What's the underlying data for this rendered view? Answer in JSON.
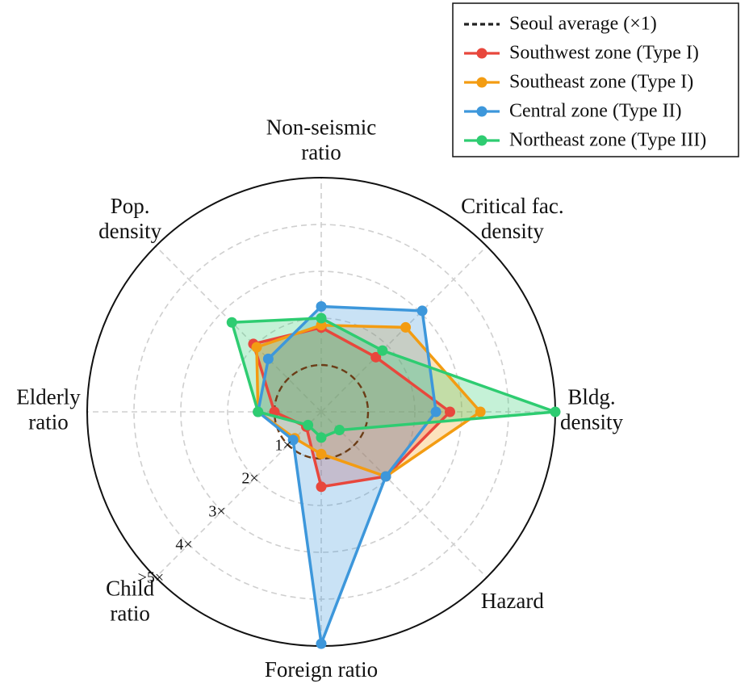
{
  "chart_data": {
    "type": "radar",
    "title": "",
    "axes": [
      "Non-seismic ratio",
      "Critical fac. density",
      "Bldg. density",
      "Hazard",
      "Foreign ratio",
      "Child ratio",
      "Elderly ratio",
      "Pop. density"
    ],
    "axis_label_lines": [
      [
        "Non-seismic",
        "ratio"
      ],
      [
        "Critical fac.",
        "density"
      ],
      [
        "Bldg.",
        "density"
      ],
      [
        "Hazard"
      ],
      [
        "Foreign ratio"
      ],
      [
        "Child",
        "ratio"
      ],
      [
        "Elderly",
        "ratio"
      ],
      [
        "Pop.",
        "density"
      ]
    ],
    "radial_ticks": [
      {
        "value": 1,
        "label": "1×"
      },
      {
        "value": 2,
        "label": "2×"
      },
      {
        "value": 3,
        "label": "3×"
      },
      {
        "value": 4,
        "label": "4×"
      },
      {
        "value": 5,
        "label": ">5×"
      }
    ],
    "rlim": [
      0,
      5
    ],
    "grid": true,
    "reference": {
      "name": "Seoul average (×1)",
      "value": 1,
      "color": "#6b3d17",
      "style": "dashed"
    },
    "series": [
      {
        "name": "Southwest zone (Type I)",
        "color": "#e8473c",
        "values": [
          1.8,
          1.65,
          2.75,
          1.95,
          1.6,
          0.45,
          1.0,
          2.05
        ]
      },
      {
        "name": "Southeast zone (Type I)",
        "color": "#f39c12",
        "values": [
          1.85,
          2.55,
          3.4,
          1.95,
          0.9,
          0.8,
          1.35,
          1.95
        ]
      },
      {
        "name": "Central zone (Type II)",
        "color": "#3d97db",
        "values": [
          2.25,
          3.05,
          2.45,
          1.95,
          4.95,
          0.85,
          1.35,
          1.6
        ]
      },
      {
        "name": "Northeast zone (Type III)",
        "color": "#2ecc71",
        "values": [
          2.0,
          1.85,
          5.0,
          0.55,
          0.55,
          0.4,
          1.35,
          2.7
        ]
      }
    ],
    "legend_position": "top-right"
  }
}
